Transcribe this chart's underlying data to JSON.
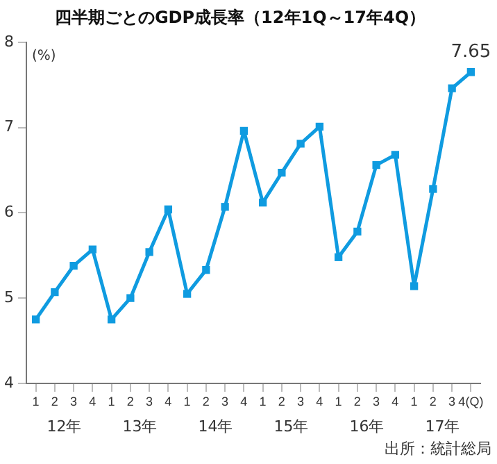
{
  "chart_data": {
    "type": "line",
    "title": "四半期ごとのGDP成長率（12年1Q～17年4Q）",
    "ylabel": "(%)",
    "categories": [
      "1",
      "2",
      "3",
      "4",
      "1",
      "2",
      "3",
      "4",
      "1",
      "2",
      "3",
      "4",
      "1",
      "2",
      "3",
      "4",
      "1",
      "2",
      "3",
      "4",
      "1",
      "2",
      "3",
      "4(Q)"
    ],
    "series": [
      {
        "color": "#0f9be0",
        "values": [
          4.75,
          5.07,
          5.38,
          5.57,
          4.75,
          5.0,
          5.54,
          6.04,
          5.05,
          5.33,
          6.07,
          6.96,
          6.12,
          6.47,
          6.81,
          7.01,
          5.48,
          5.78,
          6.56,
          6.68,
          5.14,
          6.28,
          7.46,
          7.65
        ],
        "value_labels": [
          null,
          null,
          null,
          null,
          null,
          null,
          null,
          null,
          null,
          null,
          null,
          null,
          null,
          null,
          null,
          null,
          null,
          null,
          null,
          null,
          null,
          null,
          null,
          "7.65"
        ]
      }
    ],
    "ylim": [
      4,
      8
    ],
    "yticks": [
      4,
      5,
      6,
      7,
      8
    ],
    "grid": false,
    "legend": false,
    "marker": "square",
    "line_style": "solid",
    "annotations": [
      "12年",
      "13年",
      "14年",
      "15年",
      "16年",
      "17年",
      "出所：統計総局"
    ]
  }
}
